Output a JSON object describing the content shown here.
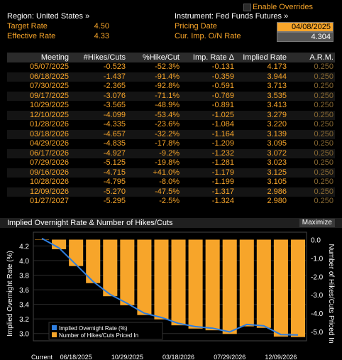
{
  "header": {
    "region": "Region: United States »",
    "instrument": "Instrument: Fed Funds Futures »",
    "enable_overrides": "Enable Overrides",
    "target_rate_label": "Target Rate",
    "target_rate_value": "4.50",
    "effective_rate_label": "Effective Rate",
    "effective_rate_value": "4.33",
    "pricing_date_label": "Pricing Date",
    "pricing_date_value": "04/08/2025",
    "cur_imp_label": "Cur. Imp. O/N Rate",
    "cur_imp_value": "4.304"
  },
  "table": {
    "columns": [
      "Meeting",
      "#Hikes/Cuts",
      "%Hike/Cut",
      "Imp. Rate Δ",
      "Implied Rate",
      "A.R.M."
    ],
    "rows": [
      [
        "05/07/2025",
        "-0.523",
        "-52.3%",
        "-0.131",
        "4.173",
        "0.250"
      ],
      [
        "06/18/2025",
        "-1.437",
        "-91.4%",
        "-0.359",
        "3.944",
        "0.250"
      ],
      [
        "07/30/2025",
        "-2.365",
        "-92.8%",
        "-0.591",
        "3.713",
        "0.250"
      ],
      [
        "09/17/2025",
        "-3.076",
        "-71.1%",
        "-0.769",
        "3.535",
        "0.250"
      ],
      [
        "10/29/2025",
        "-3.565",
        "-48.9%",
        "-0.891",
        "3.413",
        "0.250"
      ],
      [
        "12/10/2025",
        "-4.099",
        "-53.4%",
        "-1.025",
        "3.279",
        "0.250"
      ],
      [
        "01/28/2026",
        "-4.335",
        "-23.6%",
        "-1.084",
        "3.220",
        "0.250"
      ],
      [
        "03/18/2026",
        "-4.657",
        "-32.2%",
        "-1.164",
        "3.139",
        "0.250"
      ],
      [
        "04/29/2026",
        "-4.835",
        "-17.8%",
        "-1.209",
        "3.095",
        "0.250"
      ],
      [
        "06/17/2026",
        "-4.927",
        "-9.2%",
        "-1.232",
        "3.072",
        "0.250"
      ],
      [
        "07/29/2026",
        "-5.125",
        "-19.8%",
        "-1.281",
        "3.023",
        "0.250"
      ],
      [
        "09/16/2026",
        "-4.715",
        "+41.0%",
        "-1.179",
        "3.125",
        "0.250"
      ],
      [
        "10/28/2026",
        "-4.795",
        "-8.0%",
        "-1.199",
        "3.105",
        "0.250"
      ],
      [
        "12/09/2026",
        "-5.270",
        "-47.5%",
        "-1.317",
        "2.986",
        "0.250"
      ],
      [
        "01/27/2027",
        "-5.295",
        "-2.5%",
        "-1.324",
        "2.980",
        "0.250"
      ]
    ]
  },
  "chart_section": {
    "title": "Implied Overnight Rate & Number of Hikes/Cuts",
    "maximize_label": "Maximize"
  },
  "chart_data": {
    "type": "bar",
    "title": "Implied Overnight Rate & Number of Hikes/Cuts",
    "ylabel_left": "Implied Overnight Rate (%)",
    "ylabel_right": "Number of Hikes/Cuts Priced In",
    "ylim_left": [
      2.9,
      4.35
    ],
    "ylim_right": [
      -5.5,
      0.25
    ],
    "yticks_left": [
      "3.0",
      "3.2",
      "3.4",
      "3.6",
      "3.8",
      "4.0",
      "4.2"
    ],
    "yticks_right": [
      "0.0",
      "-1.0",
      "-2.0",
      "-3.0",
      "-4.0",
      "-5.0"
    ],
    "xtick_labels": [
      "Current",
      "06/18/2025",
      "10/29/2025",
      "03/18/2026",
      "07/29/2026",
      "12/09/2026"
    ],
    "categories": [
      "Current",
      "05/07/2025",
      "06/18/2025",
      "07/30/2025",
      "09/17/2025",
      "10/29/2025",
      "12/10/2025",
      "01/28/2026",
      "03/18/2026",
      "04/29/2026",
      "06/17/2026",
      "07/29/2026",
      "09/16/2026",
      "10/28/2026",
      "12/09/2026",
      "01/27/2027"
    ],
    "series": [
      {
        "name": "Implied Overnight Rate (%)",
        "kind": "line",
        "axis": "left",
        "color": "#2f7fe0",
        "values": [
          4.304,
          4.173,
          3.944,
          3.713,
          3.535,
          3.413,
          3.279,
          3.22,
          3.139,
          3.095,
          3.072,
          3.023,
          3.125,
          3.105,
          2.986,
          2.98
        ]
      },
      {
        "name": "Number of Hikes/Cuts Priced In",
        "kind": "bar",
        "axis": "right",
        "color": "#f7a52a",
        "values": [
          0,
          -0.523,
          -1.437,
          -2.365,
          -3.076,
          -3.565,
          -4.099,
          -4.335,
          -4.657,
          -4.835,
          -4.927,
          -5.125,
          -4.715,
          -4.795,
          -5.27,
          -5.295
        ]
      }
    ],
    "legend_position": "bottom-left",
    "grid": true
  },
  "colors": {
    "accent": "#f7a52a",
    "line": "#2f7fe0",
    "header_bg": "#2b2b2b"
  }
}
